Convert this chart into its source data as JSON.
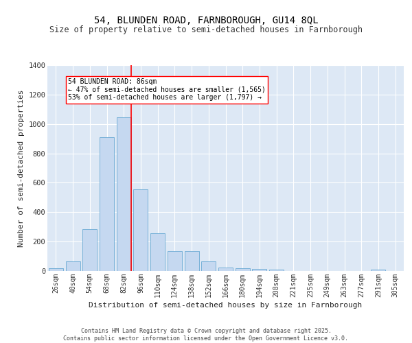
{
  "title1": "54, BLUNDEN ROAD, FARNBOROUGH, GU14 8QL",
  "title2": "Size of property relative to semi-detached houses in Farnborough",
  "xlabel": "Distribution of semi-detached houses by size in Farnborough",
  "ylabel": "Number of semi-detached properties",
  "bar_labels": [
    "26sqm",
    "40sqm",
    "54sqm",
    "68sqm",
    "82sqm",
    "96sqm",
    "110sqm",
    "124sqm",
    "138sqm",
    "152sqm",
    "166sqm",
    "180sqm",
    "194sqm",
    "208sqm",
    "221sqm",
    "235sqm",
    "249sqm",
    "263sqm",
    "277sqm",
    "291sqm",
    "305sqm"
  ],
  "bar_values": [
    20,
    65,
    285,
    910,
    1045,
    555,
    255,
    135,
    135,
    65,
    25,
    20,
    15,
    10,
    0,
    0,
    0,
    0,
    0,
    10,
    0
  ],
  "bar_color": "#c5d8f0",
  "bar_edge_color": "#6aaad4",
  "background_color": "#dde8f5",
  "vline_color": "red",
  "vline_x_index": 4.42,
  "annotation_line1": "54 BLUNDEN ROAD: 86sqm",
  "annotation_line2": "← 47% of semi-detached houses are smaller (1,565)",
  "annotation_line3": "53% of semi-detached houses are larger (1,797) →",
  "annotation_box_color": "white",
  "annotation_box_edge": "red",
  "ylim": [
    0,
    1400
  ],
  "yticks": [
    0,
    200,
    400,
    600,
    800,
    1000,
    1200,
    1400
  ],
  "footer": "Contains HM Land Registry data © Crown copyright and database right 2025.\nContains public sector information licensed under the Open Government Licence v3.0.",
  "title_fontsize": 10,
  "subtitle_fontsize": 8.5,
  "xlabel_fontsize": 8,
  "ylabel_fontsize": 8,
  "tick_fontsize": 7,
  "annotation_fontsize": 7,
  "footer_fontsize": 6
}
